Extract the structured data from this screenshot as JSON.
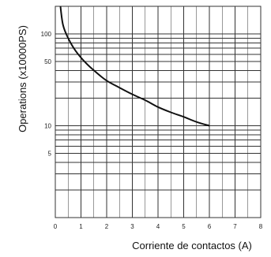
{
  "chart_data": {
    "type": "line",
    "title": "",
    "xlabel": "Corriente de contactos (A)",
    "ylabel": "Operations (x10000PS)",
    "y_scale": "log",
    "xlim": [
      0,
      8
    ],
    "ylim": [
      1,
      200
    ],
    "grid": true,
    "x_ticks": [
      "0",
      "1",
      "2",
      "3",
      "4",
      "5",
      "6",
      "7",
      "8"
    ],
    "y_ticks": [
      {
        "value": 100,
        "label": "100"
      },
      {
        "value": 50,
        "label": "50"
      },
      {
        "value": 10,
        "label": "10"
      },
      {
        "value": 5,
        "label": "5"
      }
    ],
    "series": [
      {
        "color": "#111111",
        "x": [
          0.2,
          0.3,
          0.5,
          0.8,
          1.2,
          1.6,
          2.0,
          2.5,
          3.0,
          3.5,
          4.0,
          4.5,
          5.0,
          5.5,
          6.0
        ],
        "y": [
          200,
          125,
          90,
          65,
          48,
          38,
          31,
          26,
          22,
          19,
          16,
          14,
          12.5,
          11,
          10
        ]
      }
    ]
  }
}
